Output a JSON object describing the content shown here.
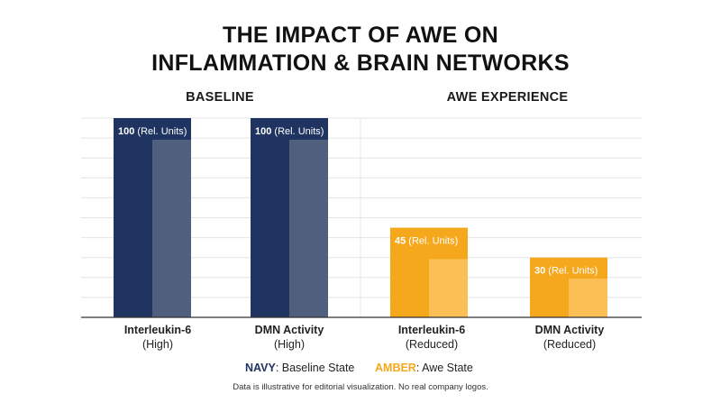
{
  "chart_data": {
    "type": "bar",
    "title_line1": "THE IMPACT OF AWE ON",
    "title_line2": "INFLAMMATION & BRAIN NETWORKS",
    "groups": [
      "BASELINE",
      "AWE EXPERIENCE"
    ],
    "bars": [
      {
        "category": "Interleukin-6",
        "state": "(High)",
        "value": 100,
        "label_value": "100",
        "label_unit": "(Rel. Units)",
        "series": "baseline"
      },
      {
        "category": "DMN Activity",
        "state": "(High)",
        "value": 100,
        "label_value": "100",
        "label_unit": "(Rel. Units)",
        "series": "baseline"
      },
      {
        "category": "Interleukin-6",
        "state": "(Reduced)",
        "value": 45,
        "label_value": "45",
        "label_unit": "(Rel. Units)",
        "series": "awe"
      },
      {
        "category": "DMN Activity",
        "state": "(Reduced)",
        "value": 30,
        "label_value": "30",
        "label_unit": "(Rel. Units)",
        "series": "awe"
      }
    ],
    "ylim": [
      0,
      100
    ],
    "grid": true,
    "legend_position": "bottom",
    "legend": [
      {
        "key": "NAVY",
        "label": ": Baseline State",
        "color": "#1f3461"
      },
      {
        "key": "AMBER",
        "label": ": Awe State",
        "color": "#f5a81c"
      }
    ],
    "colors": {
      "navy": "#1f3461",
      "navy_shade": "#505f7e",
      "amber": "#f5a81c",
      "amber_shade": "#fbbf56",
      "grid": "#e4e4e4",
      "axis": "#333333"
    }
  },
  "footnote": "Data is illustrative for editorial visualization. No real company logos."
}
